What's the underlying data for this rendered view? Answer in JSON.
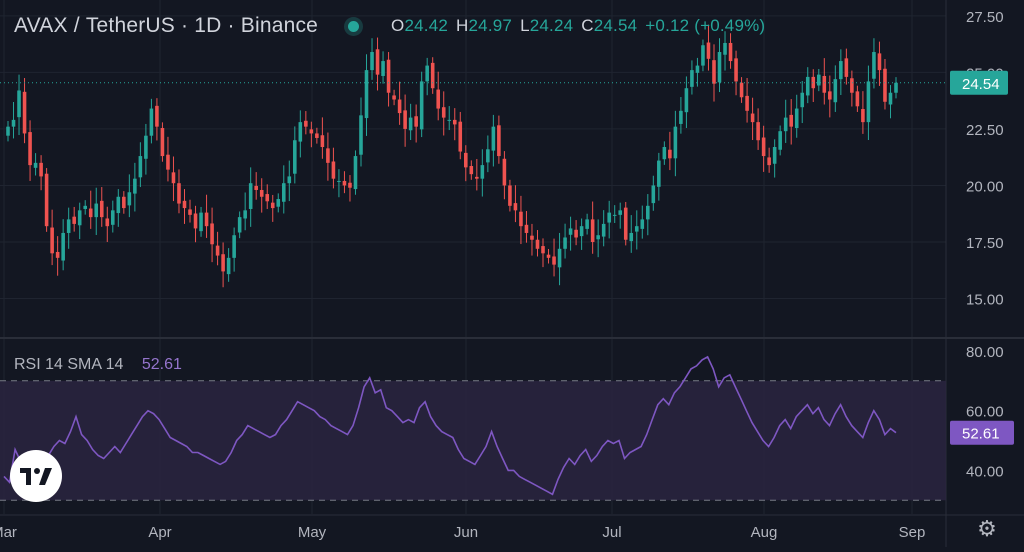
{
  "header": {
    "symbol": "AVAX",
    "separator": " / ",
    "quote": "TetherUS",
    "dot1": " · ",
    "interval": "1D",
    "dot2": " · ",
    "exchange": "Binance",
    "o_key": "O",
    "o_val": "24.42",
    "h_key": "H",
    "h_val": "24.97",
    "l_key": "L",
    "l_val": "24.24",
    "c_key": "C",
    "c_val": "24.54",
    "change": "+0.12 (+0.49%)"
  },
  "rsi_legend": {
    "label": "RSI 14 SMA 14",
    "value": "52.61"
  },
  "colors": {
    "background": "#131722",
    "up": "#26a69a",
    "down": "#ef5350",
    "rsi_line": "#7e57c2",
    "rsi_band": "#2a2440",
    "grid": "#1f2430",
    "text": "#d1d4dc"
  },
  "icons": {
    "logo": "tradingview-logo-icon",
    "settings": "gear-icon",
    "status": "status-dot-icon"
  },
  "chart_data": [
    {
      "type": "candlestick",
      "title": "AVAX / TetherUS · 1D · Binance",
      "y_ticks": [
        "27.50",
        "25.00",
        "22.50",
        "20.00",
        "17.50",
        "15.00"
      ],
      "ylim": [
        13.3,
        28.2
      ],
      "last_price": "24.54",
      "last_price_value": 24.54,
      "x_ticks": [
        "Mar",
        "Apr",
        "May",
        "Jun",
        "Jul",
        "Aug",
        "Sep"
      ],
      "grid": true,
      "closes": [
        22.6,
        22.9,
        24.2,
        22.3,
        20.9,
        21.0,
        20.4,
        18.2,
        17.0,
        16.8,
        17.9,
        18.5,
        18.3,
        18.9,
        19.1,
        18.6,
        19.2,
        18.6,
        18.2,
        18.9,
        19.5,
        19.0,
        19.7,
        20.3,
        21.3,
        22.2,
        23.4,
        22.6,
        21.3,
        20.7,
        20.1,
        19.2,
        19.0,
        18.7,
        18.1,
        18.8,
        18.2,
        17.4,
        16.9,
        16.2,
        16.8,
        17.8,
        18.6,
        18.9,
        20.1,
        19.8,
        19.5,
        19.3,
        19.0,
        19.4,
        20.1,
        20.4,
        22.0,
        22.8,
        22.6,
        22.3,
        22.1,
        21.7,
        21.0,
        20.3,
        20.2,
        20.0,
        19.9,
        21.3,
        23.1,
        25.1,
        25.9,
        24.9,
        25.5,
        24.1,
        23.8,
        23.2,
        22.5,
        23.0,
        22.6,
        24.6,
        25.3,
        24.3,
        23.4,
        23.0,
        22.9,
        22.7,
        21.5,
        20.8,
        20.5,
        20.3,
        20.9,
        21.6,
        22.6,
        21.3,
        20.0,
        19.1,
        18.9,
        18.2,
        17.9,
        17.6,
        17.2,
        17.0,
        16.8,
        16.5,
        17.2,
        17.7,
        18.1,
        17.7,
        18.2,
        18.5,
        17.5,
        17.8,
        18.3,
        18.8,
        18.7,
        18.9,
        17.6,
        17.9,
        18.2,
        18.5,
        19.1,
        20.0,
        21.1,
        21.7,
        21.2,
        22.6,
        23.3,
        24.3,
        25.1,
        25.3,
        26.2,
        25.6,
        24.5,
        25.9,
        26.3,
        25.5,
        24.6,
        23.9,
        23.3,
        22.8,
        22.0,
        21.3,
        20.9,
        21.7,
        22.4,
        23.0,
        22.6,
        23.4,
        24.1,
        24.8,
        24.3,
        24.9,
        24.1,
        23.8,
        24.7,
        25.5,
        24.8,
        24.1,
        23.5,
        22.8,
        24.6,
        25.9,
        25.1,
        23.7,
        24.1,
        24.54
      ],
      "rsi": {
        "label": "RSI 14 SMA 14",
        "last_value": "52.61",
        "last_value_num": 52.61,
        "y_ticks": [
          "80.00",
          "60.00",
          "40.00"
        ],
        "ylim": [
          25.4,
          84.0
        ],
        "band": [
          30,
          70
        ],
        "values": [
          38,
          36,
          47,
          43,
          42,
          44,
          46,
          46,
          45,
          48,
          50,
          49,
          53,
          58,
          52,
          50,
          47,
          45,
          44,
          46,
          48,
          46,
          49,
          52,
          55,
          58,
          60,
          59,
          57,
          54,
          51,
          50,
          49,
          48,
          46,
          46,
          45,
          44,
          43,
          42,
          43,
          46,
          50,
          52,
          55,
          54,
          53,
          52,
          51,
          52,
          55,
          57,
          60,
          63,
          62,
          61,
          60,
          58,
          57,
          55,
          54,
          53,
          52,
          55,
          61,
          68,
          71,
          66,
          67,
          61,
          60,
          58,
          56,
          57,
          56,
          61,
          63,
          58,
          55,
          53,
          52,
          51,
          47,
          44,
          43,
          42,
          45,
          48,
          53,
          48,
          44,
          40,
          40,
          38,
          37,
          36,
          35,
          34,
          33,
          32,
          37,
          41,
          44,
          42,
          45,
          47,
          43,
          45,
          48,
          50,
          49,
          50,
          44,
          46,
          47,
          48,
          52,
          57,
          62,
          64,
          62,
          66,
          68,
          71,
          74,
          75,
          77,
          78,
          74,
          68,
          71,
          72,
          68,
          64,
          60,
          56,
          53,
          50,
          48,
          51,
          55,
          57,
          54,
          58,
          60,
          62,
          59,
          61,
          57,
          55,
          59,
          62,
          58,
          55,
          53,
          51,
          56,
          60,
          57,
          52,
          54,
          52.61
        ]
      }
    }
  ]
}
